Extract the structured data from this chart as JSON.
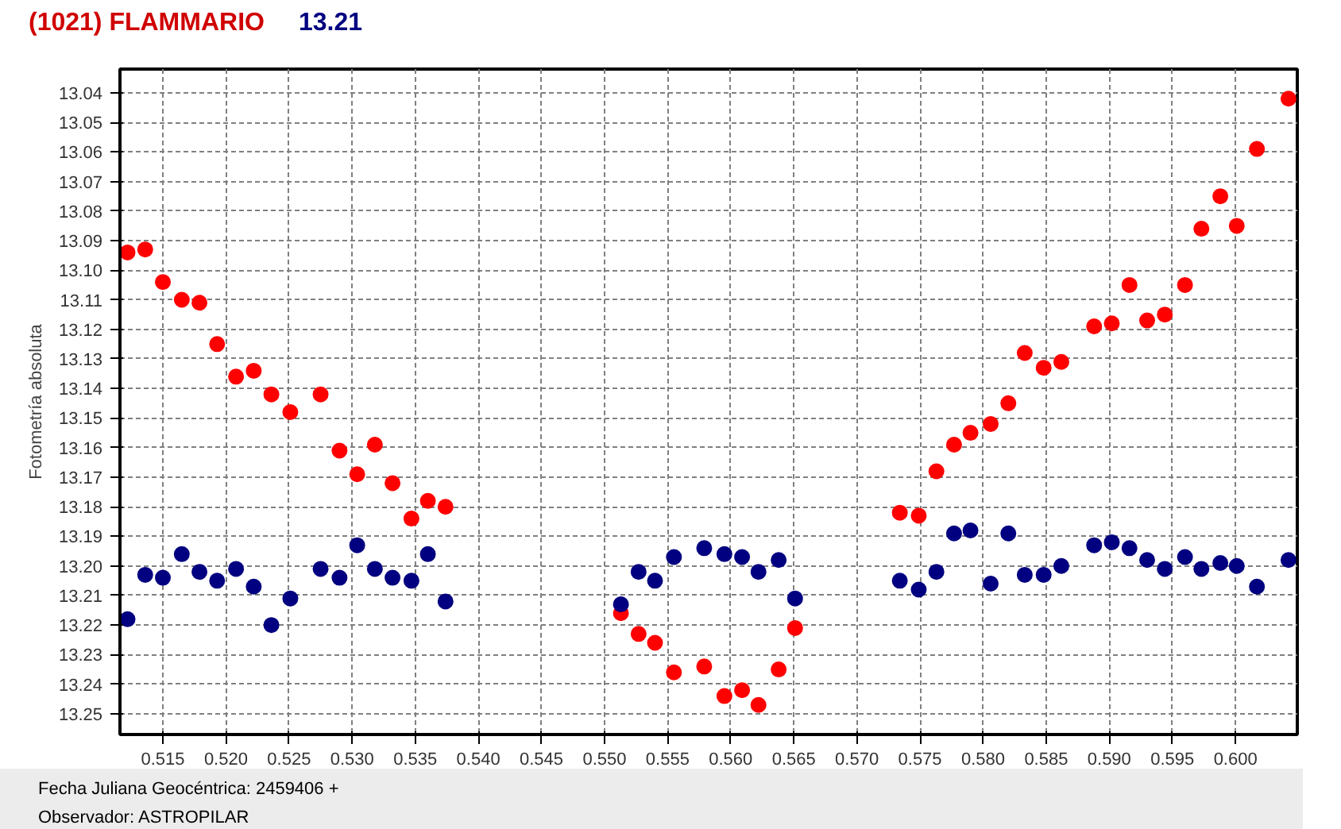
{
  "chart_data": {
    "type": "scatter",
    "title": "(1021) FLAMMARIO",
    "subtitle": "13.21",
    "ylabel": "Fotometría absoluta",
    "annotations": [
      "Fecha Juliana Geocéntrica: 2459406 +",
      "Observador: ASTROPILAR"
    ],
    "x": [
      0.5122,
      0.5136,
      0.515,
      0.5165,
      0.5179,
      0.5193,
      0.5208,
      0.5222,
      0.5236,
      0.5251,
      0.5275,
      0.529,
      0.5304,
      0.5318,
      0.5332,
      0.5347,
      0.536,
      0.5374,
      0.5513,
      0.5527,
      0.554,
      0.5555,
      0.5579,
      0.5595,
      0.5609,
      0.5622,
      0.5638,
      0.5651,
      0.5734,
      0.5749,
      0.5763,
      0.5777,
      0.579,
      0.5806,
      0.582,
      0.5833,
      0.5848,
      0.5862,
      0.5888,
      0.5902,
      0.5916,
      0.593,
      0.5944,
      0.596,
      0.5973,
      0.5988,
      0.6001,
      0.6017,
      0.6042
    ],
    "series": [
      {
        "color": "#ff0000",
        "values": [
          13.094,
          13.093,
          13.104,
          13.11,
          13.111,
          13.125,
          13.136,
          13.134,
          13.142,
          13.148,
          13.142,
          13.161,
          13.169,
          13.159,
          13.172,
          13.184,
          13.178,
          13.18,
          13.216,
          13.223,
          13.226,
          13.236,
          13.234,
          13.244,
          13.242,
          13.247,
          13.235,
          13.221,
          13.182,
          13.183,
          13.168,
          13.159,
          13.155,
          13.152,
          13.145,
          13.128,
          13.133,
          13.131,
          13.119,
          13.118,
          13.105,
          13.117,
          13.115,
          13.105,
          13.086,
          13.075,
          13.085,
          13.059,
          13.042
        ]
      },
      {
        "color": "#000080",
        "values": [
          13.218,
          13.203,
          13.204,
          13.196,
          13.202,
          13.205,
          13.201,
          13.207,
          13.22,
          13.211,
          13.201,
          13.204,
          13.193,
          13.201,
          13.204,
          13.205,
          13.196,
          13.212,
          13.213,
          13.202,
          13.205,
          13.197,
          13.194,
          13.196,
          13.197,
          13.202,
          13.198,
          13.211,
          13.205,
          13.208,
          13.202,
          13.189,
          13.188,
          13.206,
          13.189,
          13.203,
          13.203,
          13.2,
          13.193,
          13.192,
          13.194,
          13.198,
          13.201,
          13.197,
          13.201,
          13.199,
          13.2,
          13.207,
          13.198
        ]
      }
    ],
    "xlim": [
      0.5116,
      0.6049
    ],
    "ylim": [
      13.257,
      13.032
    ],
    "xticks": [
      0.515,
      {
        "value": 0.52,
        "label": "0.520"
      },
      0.525,
      {
        "value": 0.53,
        "label": "0.530"
      },
      0.535,
      {
        "value": 0.54,
        "label": "0.540"
      },
      0.545,
      {
        "value": 0.55,
        "label": "0.550"
      },
      0.555,
      {
        "value": 0.56,
        "label": "0.560"
      },
      0.565,
      {
        "value": 0.57,
        "label": "0.570"
      },
      0.575,
      {
        "value": 0.58,
        "label": "0.580"
      },
      0.585,
      {
        "value": 0.59,
        "label": "0.590"
      },
      0.595,
      {
        "value": 0.6,
        "label": "0.600"
      }
    ],
    "yticks": [
      13.04,
      13.05,
      13.06,
      13.07,
      13.08,
      13.09,
      {
        "value": 13.1,
        "label": "13.10"
      },
      13.11,
      13.12,
      13.13,
      13.14,
      13.15,
      13.16,
      13.17,
      13.18,
      13.19,
      {
        "value": 13.2,
        "label": "13.20"
      },
      13.21,
      13.22,
      13.23,
      13.24,
      13.25
    ],
    "grid": true,
    "marker": "circle"
  }
}
